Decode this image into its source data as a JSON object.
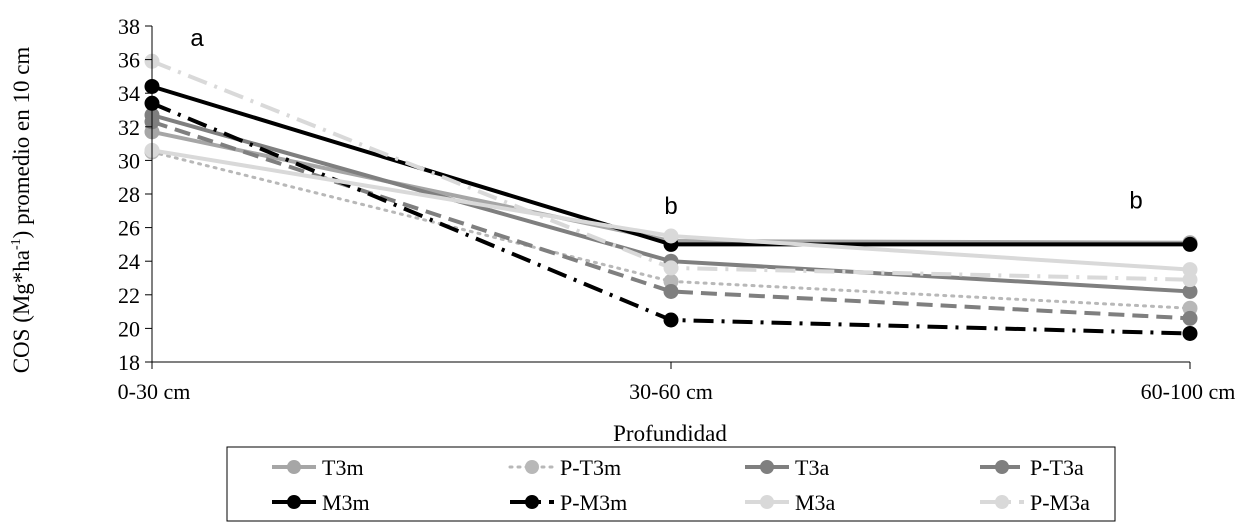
{
  "chart_data": {
    "type": "line",
    "categories": [
      "0-30 cm",
      "30-60 cm",
      "60-100 cm"
    ],
    "xlabel": "Profundidad",
    "ylabel": "COS (Mg*ha-1) promedio en 10 cm",
    "ylabel_parts": {
      "before": "COS (Mg*ha",
      "sup": "-1",
      "after": ") promedio en 10 cm"
    },
    "ylim": [
      18,
      38
    ],
    "yticks": [
      18,
      20,
      22,
      24,
      26,
      28,
      30,
      32,
      34,
      36,
      38
    ],
    "grid": false,
    "legend_position": "bottom",
    "annotations": [
      {
        "text": "a",
        "category": "0-30 cm",
        "y": 37.3
      },
      {
        "text": "b",
        "category": "30-60 cm",
        "y": 27.3
      },
      {
        "text": "b",
        "category": "60-100 cm",
        "y": 27.6
      }
    ],
    "series": [
      {
        "name": "T3m",
        "values": [
          31.7,
          25.2,
          25.1
        ],
        "color": "#a6a6a6",
        "dash": "solid"
      },
      {
        "name": "P-T3m",
        "values": [
          30.5,
          22.8,
          21.2
        ],
        "color": "#b8b8b8",
        "dash": "dot"
      },
      {
        "name": "T3a",
        "values": [
          32.7,
          24.0,
          22.2
        ],
        "color": "#7f7f7f",
        "dash": "solid"
      },
      {
        "name": "P-T3a",
        "values": [
          32.3,
          22.2,
          20.6
        ],
        "color": "#7f7f7f",
        "dash": "dash"
      },
      {
        "name": "M3m",
        "values": [
          34.4,
          25.0,
          25.0
        ],
        "color": "#000000",
        "dash": "solid"
      },
      {
        "name": "P-M3m",
        "values": [
          33.4,
          20.5,
          19.7
        ],
        "color": "#000000",
        "dash": "dashdot"
      },
      {
        "name": "M3a",
        "values": [
          30.6,
          25.5,
          23.5
        ],
        "color": "#d9d9d9",
        "dash": "solid"
      },
      {
        "name": "P-M3a",
        "values": [
          35.9,
          23.6,
          22.9
        ],
        "color": "#d9d9d9",
        "dash": "dashdot"
      }
    ]
  }
}
